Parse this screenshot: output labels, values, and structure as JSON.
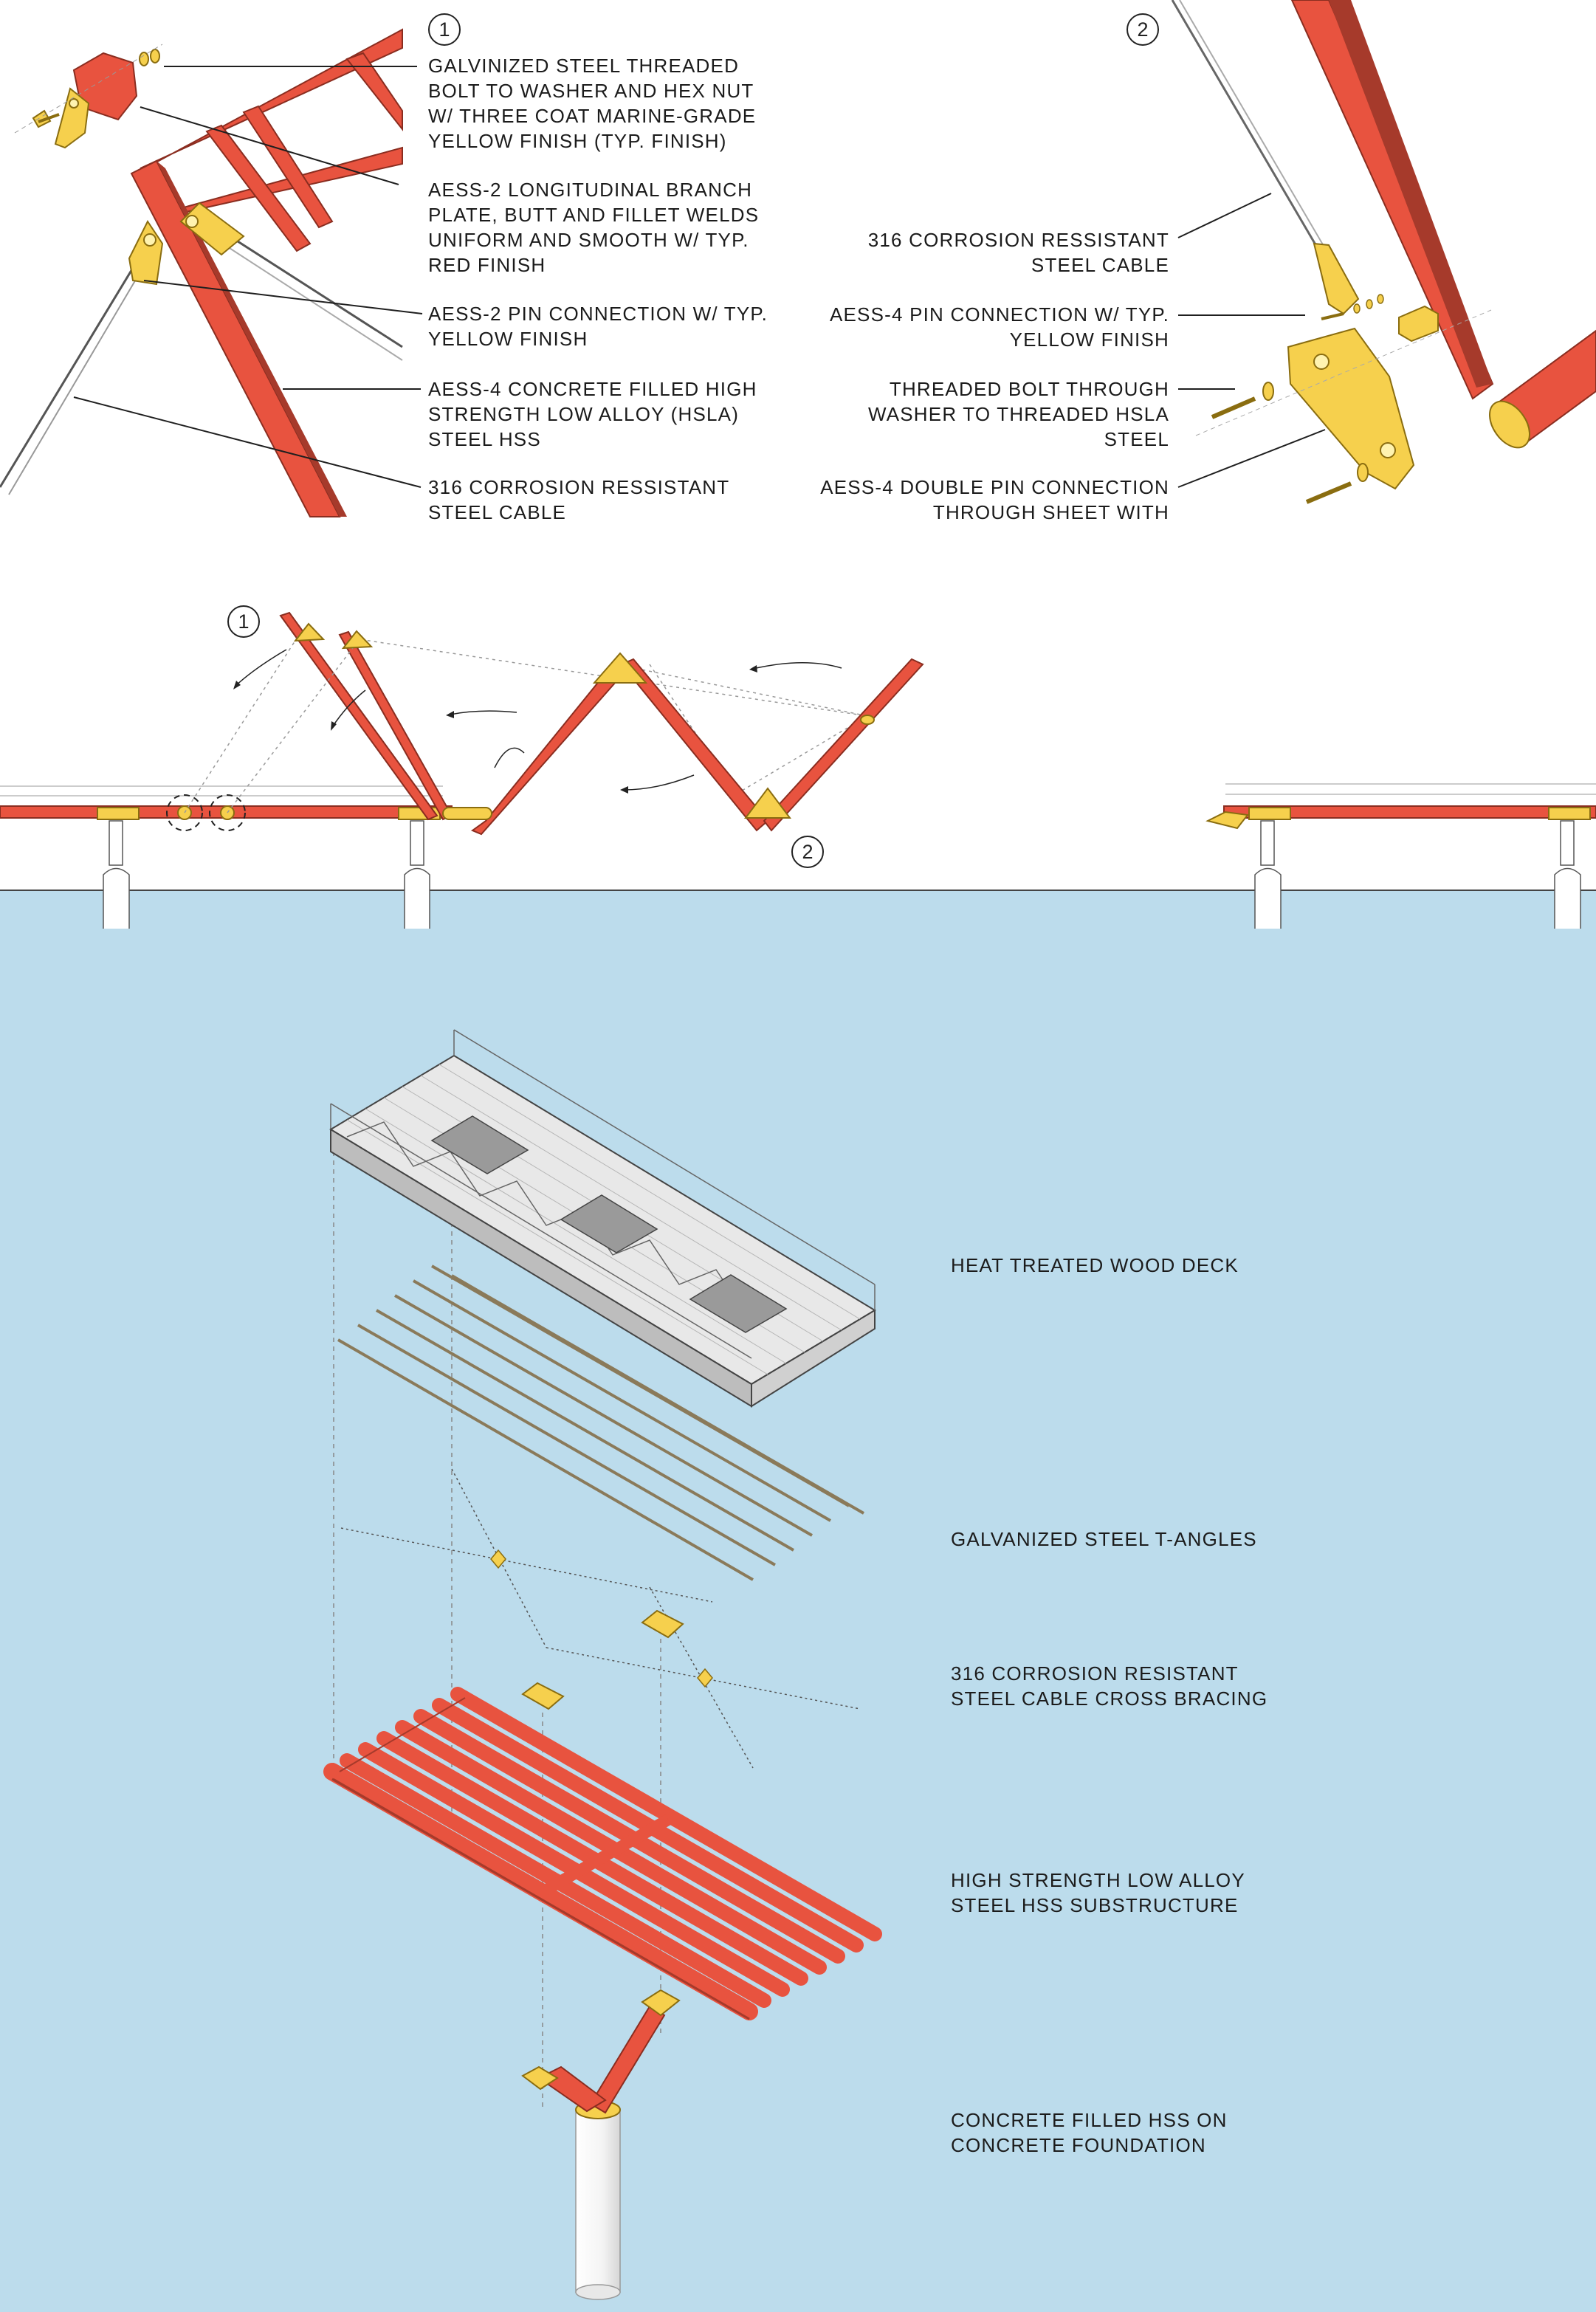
{
  "detail_1": {
    "number": "1",
    "callouts": [
      "GALVINIZED STEEL THREADED\nBOLT TO WASHER AND HEX NUT\nW/ THREE COAT MARINE-GRADE\nYELLOW FINISH (TYP. FINISH)",
      "AESS-2 LONGITUDINAL BRANCH\nPLATE, BUTT AND FILLET WELDS\nUNIFORM AND SMOOTH W/ TYP.\nRED FINISH",
      "AESS-2 PIN CONNECTION W/ TYP.\nYELLOW FINISH",
      "AESS-4 CONCRETE FILLED HIGH\nSTRENGTH LOW ALLOY (HSLA)\nSTEEL HSS",
      "316 CORROSION RESSISTANT\nSTEEL CABLE"
    ]
  },
  "detail_2": {
    "number": "2",
    "callouts": [
      "316 CORROSION RESSISTANT\nSTEEL CABLE",
      "AESS-4 PIN CONNECTION W/ TYP.\nYELLOW FINISH",
      "THREADED BOLT THROUGH\nWASHER TO THREADED HSLA\nSTEEL",
      "AESS-4 DOUBLE PIN CONNECTION\nTHROUGH SHEET WITH"
    ]
  },
  "elevation": {
    "marker_1": "1",
    "marker_2": "2"
  },
  "exploded_axon": {
    "layers": [
      "HEAT TREATED WOOD DECK",
      "GALVANIZED STEEL T-ANGLES",
      "316 CORROSION RESISTANT\nSTEEL CABLE CROSS BRACING",
      "HIGH STRENGTH LOW ALLOY\nSTEEL HSS SUBSTRUCTURE",
      "CONCRETE FILLED HSS ON\nCONCRETE FOUNDATION"
    ]
  },
  "colors": {
    "steel_red": "#e8533f",
    "steel_red_dark": "#a63a2b",
    "hardware_yellow": "#f6d04d",
    "water_blue": "#bcdcec",
    "deck_grey": "#e4e4e4",
    "line_dark": "#1f1f1f"
  }
}
